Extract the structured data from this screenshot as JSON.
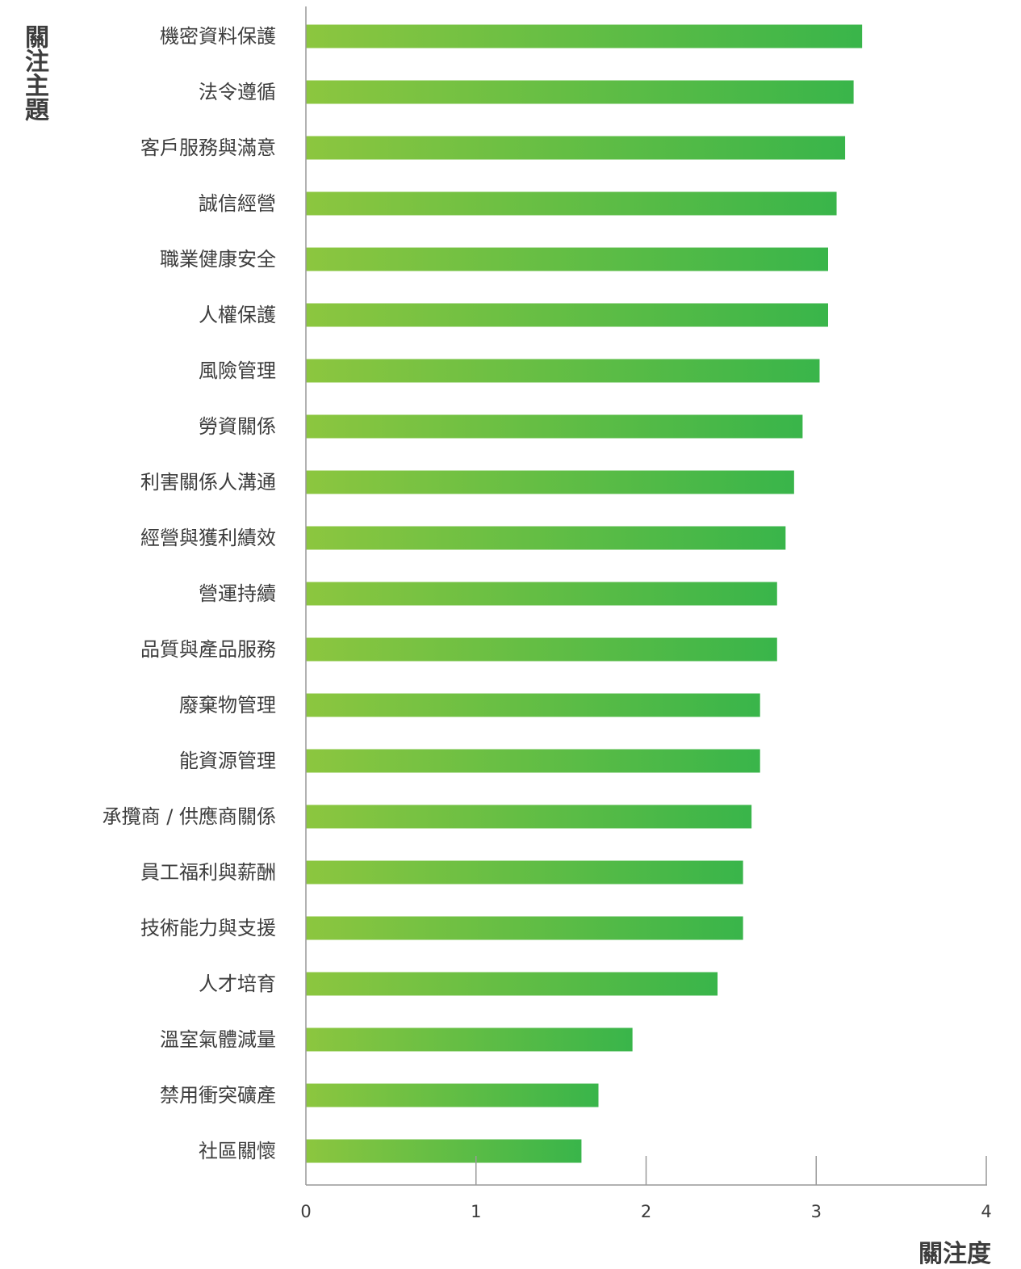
{
  "chart_data": {
    "type": "bar",
    "orientation": "horizontal",
    "ylabel": "關注主題",
    "xlabel": "關注度",
    "xlim": [
      0,
      4
    ],
    "xticks": [
      "0",
      "1",
      "2",
      "3",
      "4"
    ],
    "grid": false,
    "legend": "none",
    "colors": {
      "bar_start": "#8cc63f",
      "bar_end": "#39b54a",
      "axis": "#999999",
      "text": "#3d3d3d"
    },
    "categories": [
      "機密資料保護",
      "法令遵循",
      "客戶服務與滿意",
      "誠信經營",
      "職業健康安全",
      "人權保護",
      "風險管理",
      "勞資關係",
      "利害關係人溝通",
      "經營與獲利績效",
      "營運持續",
      "品質與產品服務",
      "廢棄物管理",
      "能資源管理",
      "承攬商 / 供應商關係",
      "員工福利與薪酬",
      "技術能力與支援",
      "人才培育",
      "溫室氣體減量",
      "禁用衝突礦產",
      "社區關懷"
    ],
    "values": [
      3.27,
      3.22,
      3.17,
      3.12,
      3.07,
      3.07,
      3.02,
      2.92,
      2.87,
      2.82,
      2.77,
      2.77,
      2.67,
      2.67,
      2.62,
      2.57,
      2.57,
      2.42,
      1.92,
      1.72,
      1.62
    ]
  }
}
